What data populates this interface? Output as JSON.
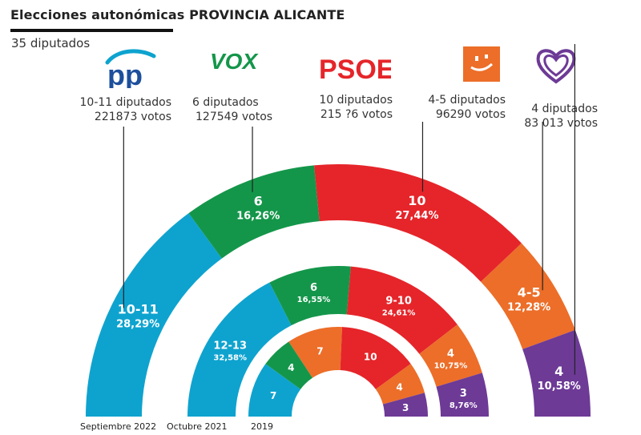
{
  "header": {
    "title": "Elecciones autonómicas PROVINCIA ALICANTE",
    "subtitle": "35 diputados"
  },
  "colors": {
    "pp": "#0ea3cf",
    "vox": "#14964a",
    "psoe": "#e5252a",
    "cs": "#ec6e29",
    "podemos": "#6d3a96"
  },
  "parties": [
    {
      "key": "pp",
      "logo_text": "pp",
      "icon": "pp-logo",
      "seats_text": "10-11 diputados",
      "votes_text": "221873 votos"
    },
    {
      "key": "vox",
      "logo_text": "VOX",
      "icon": "vox-logo",
      "seats_text": "6 diputados",
      "votes_text": "127549 votos"
    },
    {
      "key": "psoe",
      "logo_text": "PSOE",
      "icon": "psoe-logo",
      "seats_text": "10 diputados",
      "votes_text": "215 ?6 votos"
    },
    {
      "key": "cs",
      "logo_text": "",
      "icon": "ciudadanos-logo",
      "seats_text": "4-5 diputados",
      "votes_text": "96290 votos"
    },
    {
      "key": "podemos",
      "logo_text": "",
      "icon": "podemos-heart-logo",
      "seats_text": "4 diputados",
      "votes_text": "83 013 votos"
    }
  ],
  "chart_data": {
    "type": "pie",
    "subtype": "semicircle-multi-ring",
    "rings": [
      {
        "name": "Septiembre 2022",
        "segments": [
          {
            "party": "pp",
            "seats": "10-11",
            "pct": "28,29%",
            "value": 28.29
          },
          {
            "party": "vox",
            "seats": "6",
            "pct": "16,26%",
            "value": 16.26
          },
          {
            "party": "psoe",
            "seats": "10",
            "pct": "27,44%",
            "value": 27.44
          },
          {
            "party": "cs",
            "seats": "4-5",
            "pct": "12,28%",
            "value": 12.28
          },
          {
            "party": "podemos",
            "seats": "4",
            "pct": "10,58%",
            "value": 10.58
          }
        ]
      },
      {
        "name": "Octubre 2021",
        "segments": [
          {
            "party": "pp",
            "seats": "12-13",
            "pct": "32,58%",
            "value": 32.58
          },
          {
            "party": "vox",
            "seats": "6",
            "pct": "16,55%",
            "value": 16.55
          },
          {
            "party": "psoe",
            "seats": "9-10",
            "pct": "24,61%",
            "value": 24.61
          },
          {
            "party": "cs",
            "seats": "4",
            "pct": "10,75%",
            "value": 10.75
          },
          {
            "party": "podemos",
            "seats": "3",
            "pct": "8,76%",
            "value": 8.76
          }
        ]
      },
      {
        "name": "2019",
        "segments": [
          {
            "party": "pp",
            "seats": "7",
            "pct": "",
            "value": 7
          },
          {
            "party": "vox",
            "seats": "4",
            "pct": "",
            "value": 4
          },
          {
            "party": "cs",
            "seats": "7",
            "pct": "",
            "value": 7
          },
          {
            "party": "psoe",
            "seats": "10",
            "pct": "",
            "value": 10
          },
          {
            "party": "cs",
            "seats": "4",
            "pct": "",
            "value": 4
          },
          {
            "party": "podemos",
            "seats": "3",
            "pct": "",
            "value": 3
          }
        ]
      }
    ]
  }
}
